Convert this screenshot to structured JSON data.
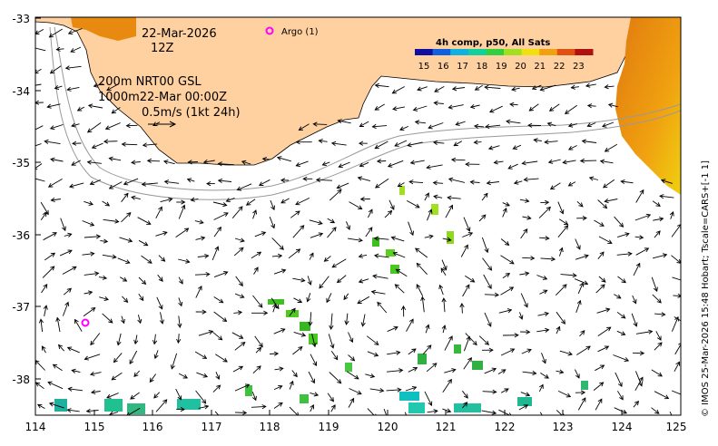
{
  "map": {
    "date": "22-Mar-2026",
    "hour": "12Z",
    "depth_note_1": "200m  NRT00 GSL",
    "depth_note_2": "1000m22-Mar 00:00Z",
    "scale_note": "0.5m/s (1kt 24h)",
    "argo_label": "Argo (1)",
    "credit": "© IMOS 25-Mar-2026 15:48 Hobart; Tscale=CARS+[-1 1]",
    "colors": {
      "land": "#ffd0a0",
      "marker": "#ff00ff"
    }
  },
  "colorbar": {
    "title": "4h comp, p50, All Sats",
    "labels": [
      "15",
      "16",
      "17",
      "18",
      "19",
      "20",
      "21",
      "22",
      "23"
    ],
    "colors": [
      "#1010a0",
      "#1060e0",
      "#10b0e0",
      "#10d0a0",
      "#30d040",
      "#a0e020",
      "#f0e010",
      "#f0a010",
      "#e05010",
      "#b01010"
    ]
  },
  "axes": {
    "x_ticks": [
      "114",
      "115",
      "116",
      "117",
      "118",
      "119",
      "120",
      "121",
      "122",
      "123",
      "124",
      "125"
    ],
    "y_ticks": [
      "-33",
      "-34",
      "-35",
      "-36",
      "-37",
      "-38"
    ]
  }
}
